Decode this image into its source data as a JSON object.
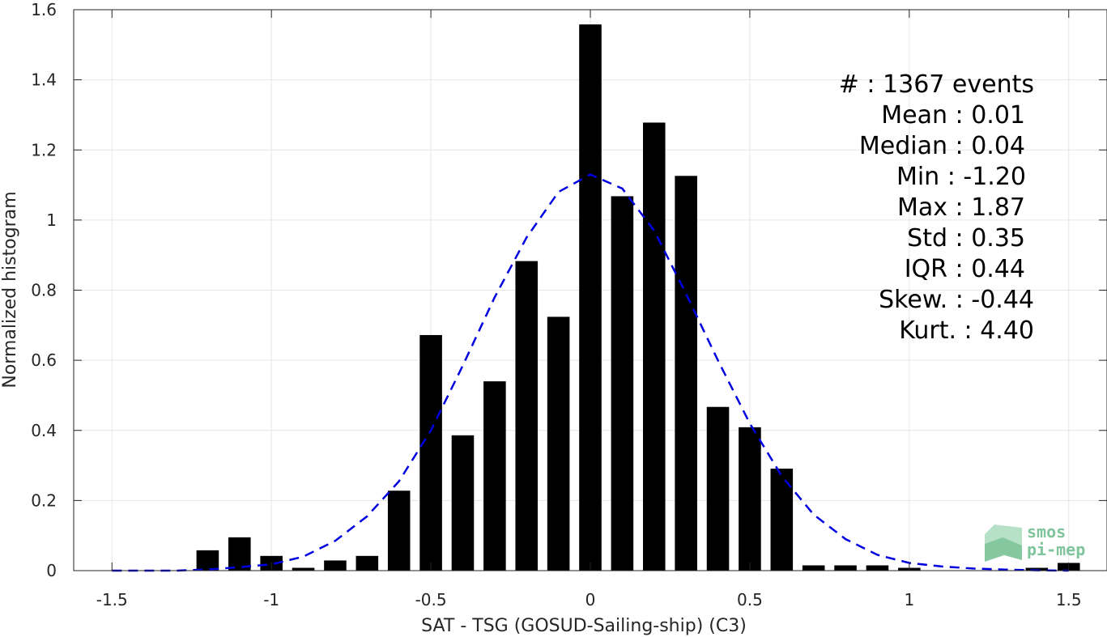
{
  "chart_data": {
    "type": "bar",
    "xlabel": "SAT - TSG (GOSUD-Sailing-ship) (C3)",
    "ylabel": "Normalized histogram",
    "xlim": [
      -1.62,
      1.62
    ],
    "ylim": [
      0,
      1.6
    ],
    "xticks": [
      -1.5,
      -1,
      -0.5,
      0,
      0.5,
      1,
      1.5
    ],
    "xtick_labels": [
      "-1.5",
      "-1",
      "-0.5",
      "0",
      "0.5",
      "1",
      "1.5"
    ],
    "yticks": [
      0,
      0.2,
      0.4,
      0.6,
      0.8,
      1,
      1.2,
      1.4,
      1.6
    ],
    "ytick_labels": [
      "0",
      "0.2",
      "0.4",
      "0.6",
      "0.8",
      "1",
      "1.2",
      "1.4",
      "1.6"
    ],
    "grid": true,
    "bar_width": 0.07,
    "bar_color": "#000000",
    "x": [
      -1.2,
      -1.1,
      -1.0,
      -0.9,
      -0.8,
      -0.7,
      -0.6,
      -0.5,
      -0.4,
      -0.3,
      -0.2,
      -0.1,
      0.0,
      0.1,
      0.2,
      0.3,
      0.4,
      0.5,
      0.6,
      0.7,
      0.8,
      0.9,
      1.0,
      1.4,
      1.5
    ],
    "values": [
      0.058,
      0.095,
      0.042,
      0.008,
      0.029,
      0.042,
      0.228,
      0.672,
      0.386,
      0.54,
      0.883,
      0.724,
      1.558,
      1.068,
      1.278,
      1.126,
      0.467,
      0.409,
      0.291,
      0.015,
      0.015,
      0.015,
      0.008,
      0.008,
      0.022
    ],
    "fit_curve": {
      "style": "dashed",
      "color": "#0000e0",
      "x": [
        -1.5,
        -1.4,
        -1.3,
        -1.2,
        -1.1,
        -1.0,
        -0.9,
        -0.8,
        -0.7,
        -0.6,
        -0.5,
        -0.4,
        -0.3,
        -0.2,
        -0.1,
        0.0,
        0.1,
        0.2,
        0.3,
        0.4,
        0.5,
        0.6,
        0.7,
        0.8,
        0.9,
        1.0,
        1.1,
        1.2,
        1.3,
        1.4,
        1.5
      ],
      "y": [
        0.0,
        0.0,
        0.0,
        0.003,
        0.01,
        0.018,
        0.04,
        0.085,
        0.155,
        0.255,
        0.4,
        0.585,
        0.78,
        0.95,
        1.08,
        1.13,
        1.09,
        0.97,
        0.79,
        0.6,
        0.42,
        0.27,
        0.16,
        0.09,
        0.045,
        0.022,
        0.012,
        0.006,
        0.003,
        0.001,
        0.0
      ]
    },
    "stats": [
      "#  : 1367 events",
      "Mean : 0.01",
      "Median : 0.04",
      "Min : -1.20",
      "Max : 1.87",
      "Std : 0.35",
      "IQR : 0.44",
      "Skew. : -0.44",
      "Kurt. : 4.40"
    ]
  },
  "logo": {
    "line1": "smos",
    "line2": "pi-mep",
    "color": "#7fc49a"
  }
}
